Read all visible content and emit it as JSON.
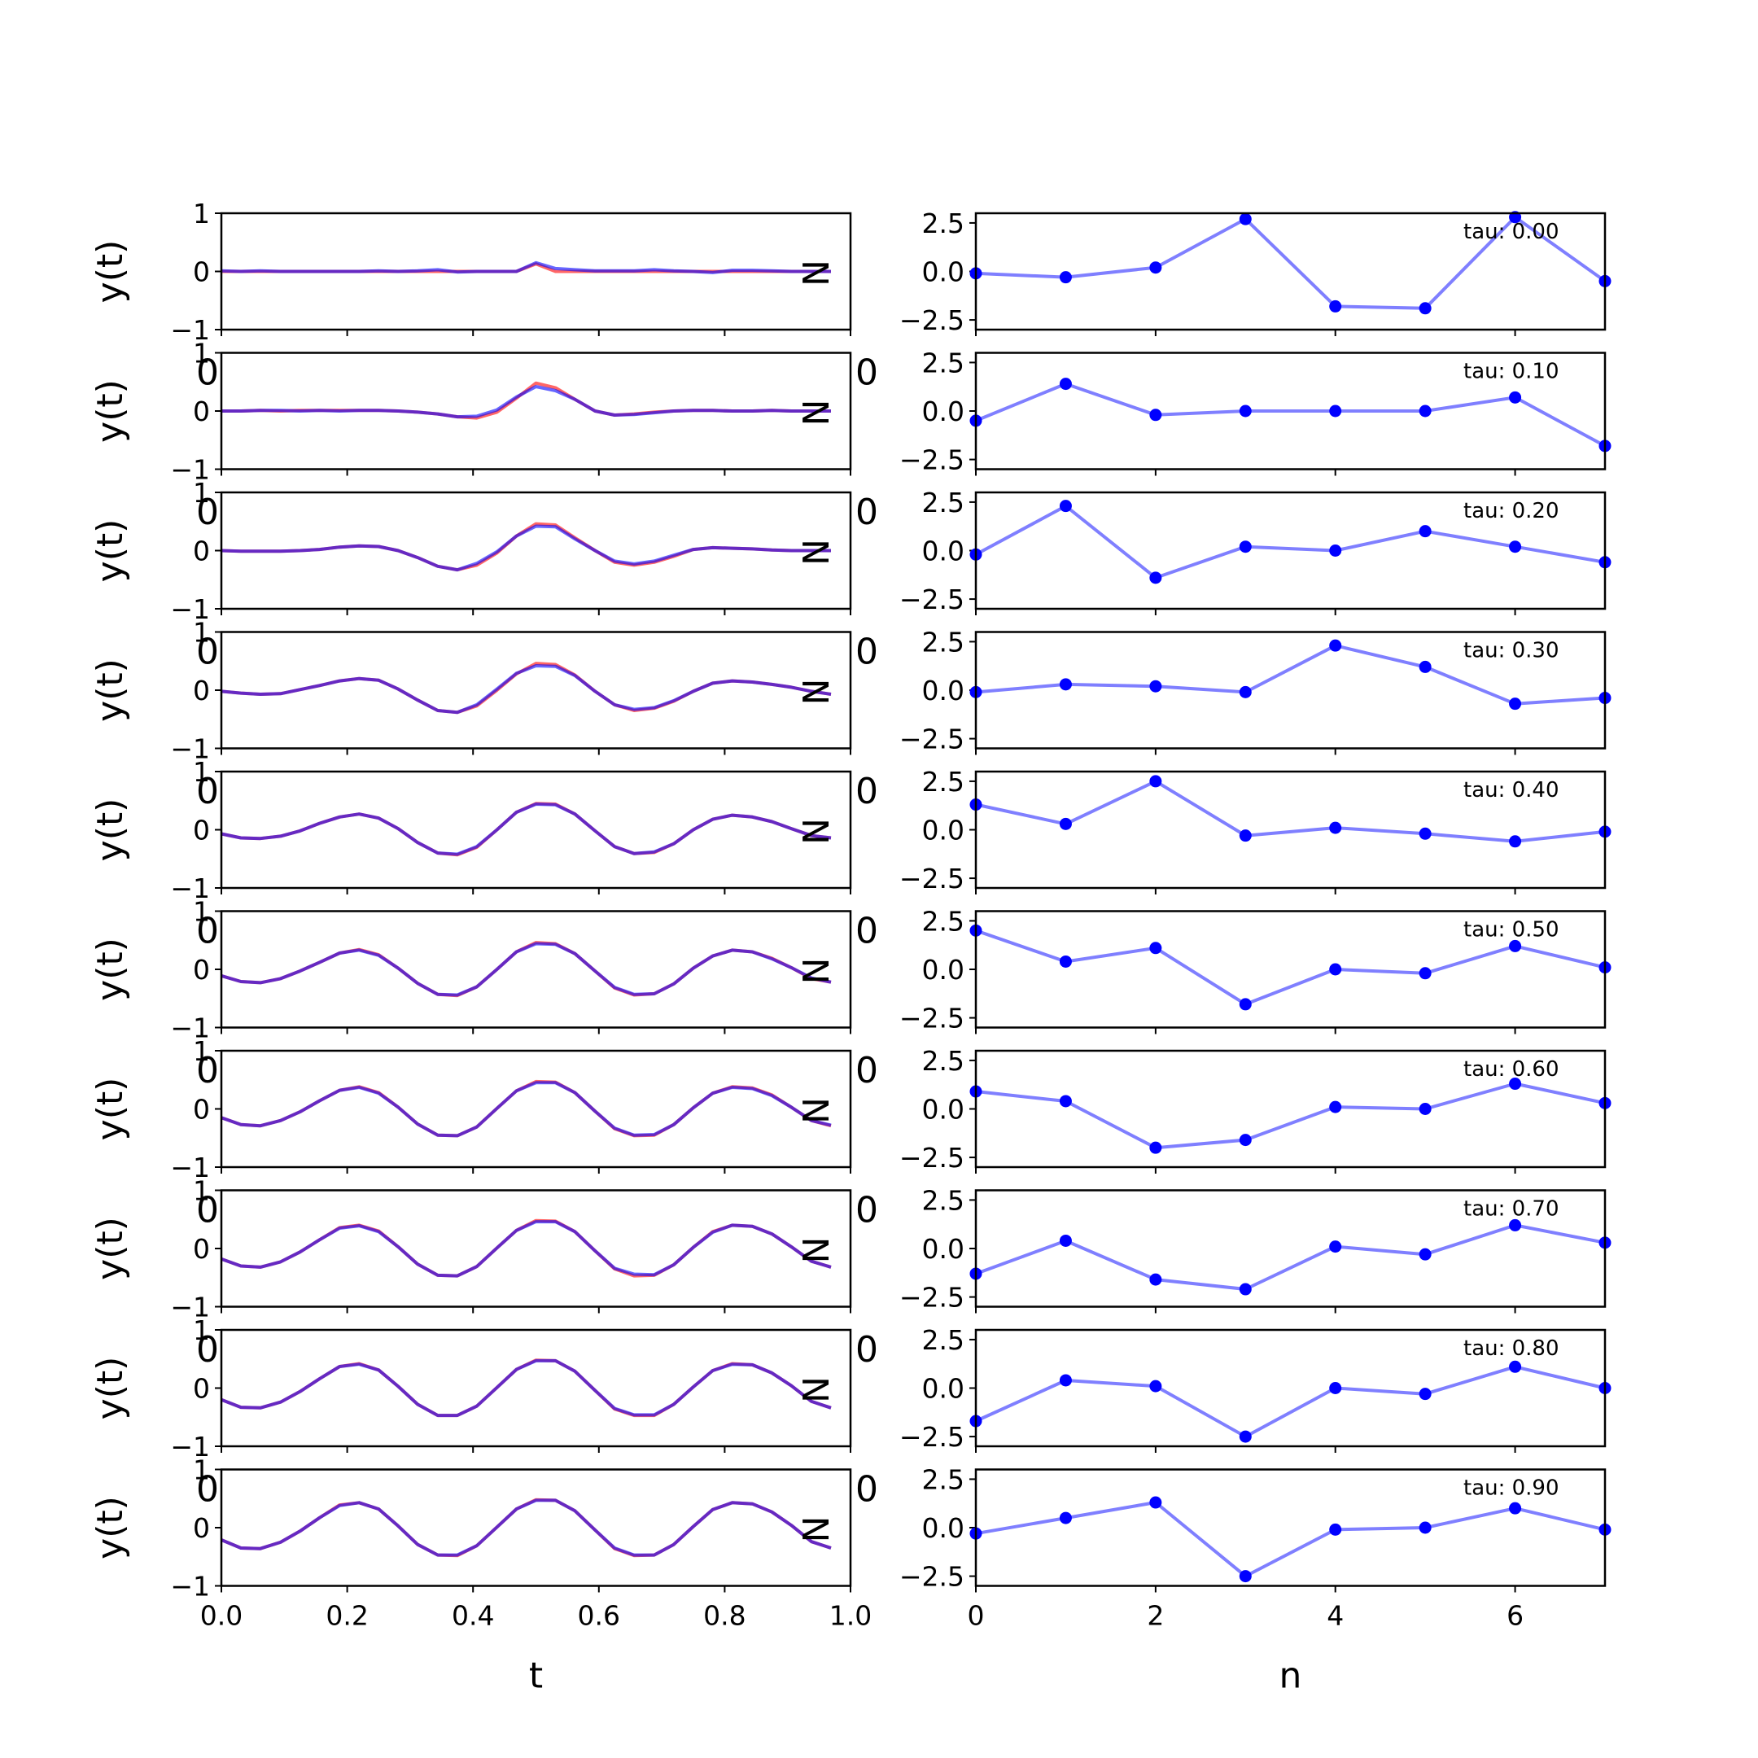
{
  "chart_data": {
    "type": "line",
    "colors": {
      "reference": "#ff0000",
      "prediction": "#0000ff",
      "coefficients": "#0000ff"
    },
    "left_panels": {
      "xlabel": "t",
      "ylabel": "y(t)",
      "xlim": [
        0,
        1
      ],
      "ylim": [
        -1,
        1
      ],
      "xticks": [
        "0.0",
        "0.2",
        "0.4",
        "0.6",
        "0.8",
        "1.0"
      ],
      "yticks": [
        "1",
        "0",
        "−1"
      ],
      "overlap_tick_text": "0",
      "side_label": "N",
      "t": [
        0,
        0.031,
        0.062,
        0.094,
        0.125,
        0.156,
        0.188,
        0.219,
        0.25,
        0.281,
        0.312,
        0.344,
        0.375,
        0.406,
        0.438,
        0.469,
        0.5,
        0.531,
        0.562,
        0.594,
        0.625,
        0.656,
        0.688,
        0.719,
        0.75,
        0.781,
        0.812,
        0.844,
        0.875,
        0.906,
        0.938,
        0.969
      ]
    },
    "right_panels": {
      "xlabel": "n",
      "xlim": [
        0,
        7
      ],
      "ylim": [
        -3,
        3
      ],
      "xticks": [
        "0",
        "2",
        "4",
        "6"
      ],
      "yticks": [
        "2.5",
        "0.0",
        "−2.5"
      ],
      "n": [
        0,
        1,
        2,
        3,
        4,
        5,
        6,
        7
      ]
    },
    "rows": [
      {
        "tau": "tau: 0.00",
        "red": [
          0.0,
          0.0,
          0.0,
          0.0,
          0.0,
          0.0,
          0.0,
          0.0,
          0.0,
          0.0,
          0.0,
          0.0,
          0.0,
          0.0,
          0.0,
          0.0,
          0.13,
          0.0,
          0.0,
          0.0,
          0.0,
          0.0,
          0.0,
          0.0,
          0.0,
          0.0,
          0.0,
          0.0,
          0.0,
          0.0,
          0.0,
          0.0
        ],
        "blue": [
          0.01,
          0.0,
          0.01,
          0.0,
          0.0,
          0.0,
          0.0,
          0.0,
          0.01,
          0.0,
          0.01,
          0.03,
          -0.01,
          0.0,
          0.0,
          0.0,
          0.15,
          0.05,
          0.03,
          0.01,
          0.01,
          0.01,
          0.03,
          0.01,
          0.0,
          -0.02,
          0.02,
          0.02,
          0.01,
          0.0,
          0.0,
          0.0
        ],
        "coeffs": [
          -0.1,
          -0.3,
          0.2,
          2.7,
          -1.8,
          -1.9,
          2.8,
          -0.5
        ]
      },
      {
        "tau": "tau: 0.10",
        "red": [
          0.0,
          0.0,
          0.01,
          0.0,
          0.01,
          0.01,
          0.01,
          0.01,
          0.01,
          0.0,
          -0.02,
          -0.05,
          -0.1,
          -0.12,
          -0.02,
          0.22,
          0.48,
          0.4,
          0.2,
          0.0,
          -0.07,
          -0.05,
          -0.02,
          0.0,
          0.01,
          0.01,
          0.0,
          0.0,
          0.01,
          0.0,
          0.0,
          0.0
        ],
        "blue": [
          0.0,
          0.0,
          0.01,
          0.01,
          0.0,
          0.01,
          0.0,
          0.01,
          0.01,
          0.0,
          -0.02,
          -0.05,
          -0.1,
          -0.09,
          0.02,
          0.24,
          0.42,
          0.35,
          0.2,
          0.0,
          -0.07,
          -0.06,
          -0.03,
          0.0,
          0.01,
          0.01,
          0.0,
          0.0,
          0.01,
          0.0,
          0.0,
          0.0
        ],
        "coeffs": [
          -0.5,
          1.4,
          -0.2,
          0.0,
          0.0,
          0.0,
          0.7,
          -1.8
        ]
      },
      {
        "tau": "tau: 0.20",
        "red": [
          0.0,
          -0.01,
          -0.01,
          -0.01,
          0.0,
          0.02,
          0.06,
          0.08,
          0.07,
          0.0,
          -0.12,
          -0.27,
          -0.33,
          -0.25,
          -0.04,
          0.25,
          0.46,
          0.44,
          0.22,
          0.0,
          -0.2,
          -0.25,
          -0.2,
          -0.1,
          0.02,
          0.05,
          0.04,
          0.03,
          0.01,
          0.0,
          0.0,
          0.0
        ],
        "blue": [
          0.0,
          -0.01,
          -0.01,
          -0.01,
          0.0,
          0.02,
          0.06,
          0.08,
          0.07,
          0.0,
          -0.12,
          -0.27,
          -0.33,
          -0.22,
          -0.02,
          0.25,
          0.42,
          0.41,
          0.2,
          0.0,
          -0.18,
          -0.23,
          -0.18,
          -0.08,
          0.02,
          0.05,
          0.04,
          0.03,
          0.01,
          0.0,
          0.0,
          0.0
        ],
        "coeffs": [
          -0.2,
          2.3,
          -1.4,
          0.2,
          0.0,
          1.0,
          0.2,
          -0.6
        ]
      },
      {
        "tau": "tau: 0.30",
        "red": [
          -0.02,
          -0.05,
          -0.07,
          -0.06,
          0.01,
          0.08,
          0.16,
          0.2,
          0.17,
          0.02,
          -0.17,
          -0.35,
          -0.38,
          -0.27,
          0.0,
          0.28,
          0.46,
          0.44,
          0.26,
          -0.02,
          -0.25,
          -0.35,
          -0.31,
          -0.19,
          -0.02,
          0.12,
          0.16,
          0.14,
          0.1,
          0.05,
          -0.02,
          -0.07
        ],
        "blue": [
          -0.02,
          -0.05,
          -0.07,
          -0.06,
          0.01,
          0.08,
          0.16,
          0.2,
          0.17,
          0.02,
          -0.17,
          -0.35,
          -0.38,
          -0.25,
          0.02,
          0.29,
          0.42,
          0.41,
          0.25,
          -0.02,
          -0.25,
          -0.33,
          -0.3,
          -0.18,
          -0.02,
          0.12,
          0.16,
          0.14,
          0.1,
          0.05,
          -0.02,
          -0.07
        ],
        "coeffs": [
          -0.1,
          0.3,
          0.2,
          -0.1,
          2.3,
          1.2,
          -0.7,
          -0.4
        ]
      },
      {
        "tau": "tau: 0.40",
        "red": [
          -0.07,
          -0.14,
          -0.15,
          -0.11,
          -0.02,
          0.11,
          0.22,
          0.27,
          0.2,
          0.02,
          -0.22,
          -0.4,
          -0.43,
          -0.3,
          0.0,
          0.3,
          0.45,
          0.44,
          0.27,
          -0.02,
          -0.29,
          -0.41,
          -0.39,
          -0.24,
          0.0,
          0.18,
          0.25,
          0.22,
          0.14,
          0.02,
          -0.1,
          -0.14
        ],
        "blue": [
          -0.07,
          -0.14,
          -0.15,
          -0.11,
          -0.02,
          0.11,
          0.22,
          0.27,
          0.2,
          0.02,
          -0.22,
          -0.4,
          -0.42,
          -0.29,
          0.0,
          0.3,
          0.44,
          0.43,
          0.27,
          -0.02,
          -0.29,
          -0.41,
          -0.38,
          -0.24,
          0.0,
          0.18,
          0.25,
          0.22,
          0.14,
          0.02,
          -0.1,
          -0.14
        ],
        "coeffs": [
          1.3,
          0.3,
          2.5,
          -0.3,
          0.1,
          -0.2,
          -0.6,
          -0.1
        ]
      },
      {
        "tau": "tau: 0.50",
        "red": [
          -0.11,
          -0.21,
          -0.23,
          -0.16,
          -0.03,
          0.12,
          0.28,
          0.34,
          0.25,
          0.02,
          -0.24,
          -0.43,
          -0.45,
          -0.3,
          0.0,
          0.3,
          0.46,
          0.44,
          0.27,
          -0.03,
          -0.32,
          -0.44,
          -0.42,
          -0.25,
          0.02,
          0.23,
          0.33,
          0.3,
          0.19,
          0.03,
          -0.16,
          -0.22
        ],
        "blue": [
          -0.11,
          -0.21,
          -0.23,
          -0.16,
          -0.03,
          0.12,
          0.28,
          0.33,
          0.24,
          0.02,
          -0.24,
          -0.43,
          -0.44,
          -0.3,
          0.0,
          0.3,
          0.44,
          0.43,
          0.27,
          -0.03,
          -0.31,
          -0.43,
          -0.42,
          -0.25,
          0.02,
          0.23,
          0.33,
          0.3,
          0.18,
          0.03,
          -0.15,
          -0.22
        ],
        "coeffs": [
          2.0,
          0.4,
          1.1,
          -1.8,
          0.0,
          -0.2,
          1.2,
          0.1
        ]
      },
      {
        "tau": "tau: 0.60",
        "red": [
          -0.15,
          -0.27,
          -0.29,
          -0.2,
          -0.05,
          0.14,
          0.32,
          0.38,
          0.28,
          0.03,
          -0.26,
          -0.45,
          -0.46,
          -0.31,
          0.01,
          0.31,
          0.47,
          0.46,
          0.28,
          -0.04,
          -0.34,
          -0.46,
          -0.45,
          -0.27,
          0.02,
          0.27,
          0.38,
          0.36,
          0.24,
          0.03,
          -0.2,
          -0.29
        ],
        "blue": [
          -0.15,
          -0.27,
          -0.29,
          -0.2,
          -0.05,
          0.14,
          0.32,
          0.37,
          0.27,
          0.03,
          -0.26,
          -0.45,
          -0.46,
          -0.31,
          0.01,
          0.31,
          0.45,
          0.45,
          0.28,
          -0.04,
          -0.33,
          -0.45,
          -0.44,
          -0.27,
          0.02,
          0.27,
          0.37,
          0.35,
          0.23,
          0.03,
          -0.2,
          -0.28
        ],
        "coeffs": [
          0.9,
          0.4,
          -2.0,
          -1.6,
          0.1,
          0.0,
          1.3,
          0.3
        ]
      },
      {
        "tau": "tau: 0.70",
        "red": [
          -0.18,
          -0.3,
          -0.32,
          -0.23,
          -0.06,
          0.15,
          0.36,
          0.4,
          0.3,
          0.03,
          -0.27,
          -0.46,
          -0.47,
          -0.31,
          0.01,
          0.31,
          0.48,
          0.47,
          0.29,
          -0.04,
          -0.35,
          -0.47,
          -0.46,
          -0.28,
          0.02,
          0.29,
          0.4,
          0.38,
          0.25,
          0.03,
          -0.22,
          -0.32
        ],
        "blue": [
          -0.18,
          -0.3,
          -0.32,
          -0.23,
          -0.06,
          0.15,
          0.35,
          0.39,
          0.29,
          0.03,
          -0.27,
          -0.46,
          -0.47,
          -0.31,
          0.01,
          0.31,
          0.46,
          0.46,
          0.29,
          -0.04,
          -0.34,
          -0.44,
          -0.45,
          -0.28,
          0.02,
          0.28,
          0.4,
          0.38,
          0.25,
          0.03,
          -0.22,
          -0.32
        ],
        "coeffs": [
          -1.3,
          0.4,
          -1.6,
          -2.1,
          0.1,
          -0.3,
          1.2,
          0.3
        ]
      },
      {
        "tau": "tau: 0.80",
        "red": [
          -0.2,
          -0.33,
          -0.34,
          -0.24,
          -0.06,
          0.16,
          0.37,
          0.42,
          0.31,
          0.03,
          -0.28,
          -0.47,
          -0.47,
          -0.31,
          0.01,
          0.32,
          0.48,
          0.47,
          0.29,
          -0.04,
          -0.36,
          -0.47,
          -0.47,
          -0.28,
          0.02,
          0.3,
          0.42,
          0.4,
          0.26,
          0.04,
          -0.23,
          -0.34
        ],
        "blue": [
          -0.2,
          -0.33,
          -0.34,
          -0.24,
          -0.06,
          0.16,
          0.37,
          0.41,
          0.31,
          0.03,
          -0.28,
          -0.47,
          -0.47,
          -0.31,
          0.01,
          0.32,
          0.47,
          0.47,
          0.29,
          -0.04,
          -0.35,
          -0.46,
          -0.46,
          -0.28,
          0.02,
          0.3,
          0.41,
          0.4,
          0.26,
          0.04,
          -0.23,
          -0.34
        ],
        "coeffs": [
          -1.7,
          0.4,
          0.1,
          -2.5,
          0.0,
          -0.3,
          1.1,
          0.0
        ]
      },
      {
        "tau": "tau: 0.90",
        "red": [
          -0.21,
          -0.35,
          -0.36,
          -0.25,
          -0.06,
          0.17,
          0.39,
          0.43,
          0.32,
          0.03,
          -0.29,
          -0.47,
          -0.48,
          -0.31,
          0.01,
          0.32,
          0.48,
          0.47,
          0.29,
          -0.04,
          -0.36,
          -0.48,
          -0.47,
          -0.29,
          0.02,
          0.31,
          0.43,
          0.41,
          0.27,
          0.04,
          -0.24,
          -0.35
        ],
        "blue": [
          -0.21,
          -0.35,
          -0.36,
          -0.25,
          -0.06,
          0.17,
          0.38,
          0.43,
          0.32,
          0.03,
          -0.29,
          -0.47,
          -0.47,
          -0.31,
          0.01,
          0.32,
          0.47,
          0.47,
          0.29,
          -0.04,
          -0.35,
          -0.47,
          -0.47,
          -0.29,
          0.02,
          0.31,
          0.43,
          0.41,
          0.27,
          0.04,
          -0.24,
          -0.35
        ],
        "coeffs": [
          -0.3,
          0.5,
          1.3,
          -2.5,
          -0.1,
          0.0,
          1.0,
          -0.1
        ]
      }
    ]
  }
}
